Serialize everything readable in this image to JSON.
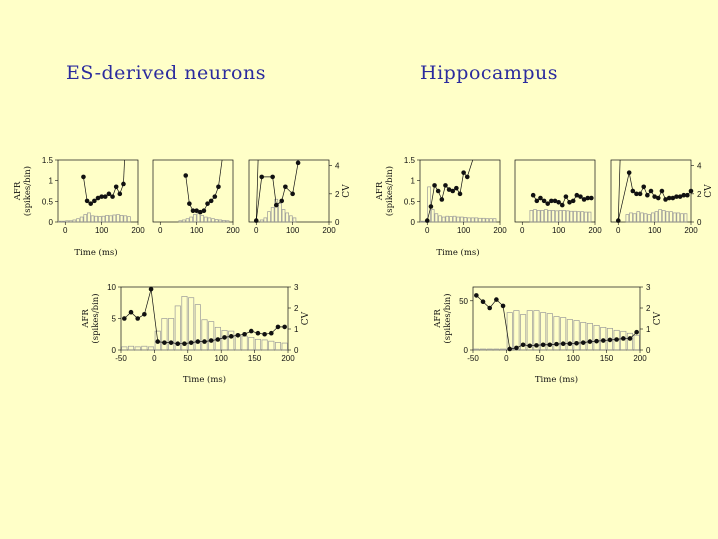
{
  "slide": {
    "left_title": "ES-derived neurons",
    "right_title": "Hippocampus"
  },
  "colors": {
    "background": "#ffffc8",
    "title": "#2b2b9e",
    "ink": "#111111",
    "bar_stroke": "#9a9a9a"
  },
  "chart_data": [
    {
      "id": "es-small-1",
      "type": "bar+line",
      "panel": "ES-derived neurons",
      "xlim": [
        -20,
        200
      ],
      "xticks": [
        0,
        100,
        200
      ],
      "ylim": [
        0,
        1.5
      ],
      "yticks": [
        0,
        0.5,
        1,
        1.5
      ],
      "ytick_labels": [
        "0",
        "0.5",
        "1",
        "1.5"
      ],
      "ylabel": "AFR\n(spikes/bin)",
      "xlabel": "Time (ms)",
      "bars": {
        "x": [
          -15,
          -5,
          5,
          15,
          25,
          35,
          45,
          55,
          65,
          75,
          85,
          95,
          105,
          115,
          125,
          135,
          145,
          155,
          165,
          175
        ],
        "values": [
          0.02,
          0.02,
          0.03,
          0.03,
          0.05,
          0.08,
          0.12,
          0.18,
          0.22,
          0.15,
          0.14,
          0.13,
          0.14,
          0.16,
          0.15,
          0.17,
          0.18,
          0.16,
          0.15,
          0.13
        ]
      },
      "cv": {
        "x": [
          50,
          60,
          70,
          80,
          90,
          100,
          110,
          120,
          130,
          140,
          150,
          160
        ],
        "values": [
          3.2,
          1.5,
          1.3,
          1.5,
          1.7,
          1.8,
          1.8,
          2.0,
          1.8,
          2.5,
          2.0,
          2.7
        ],
        "ylim": [
          0,
          4.4
        ],
        "overflow": [
          [
            160,
            2.7
          ],
          [
            163,
            5.0
          ]
        ]
      }
    },
    {
      "id": "es-small-2",
      "type": "bar+line",
      "panel": "ES-derived neurons",
      "xlim": [
        -20,
        200
      ],
      "xticks": [
        0,
        100,
        200
      ],
      "ylim": [
        0,
        1.5
      ],
      "bars": {
        "x": [
          55,
          65,
          75,
          85,
          95,
          105,
          115,
          125,
          135,
          145,
          155,
          165,
          175,
          185
        ],
        "values": [
          0.03,
          0.05,
          0.08,
          0.12,
          0.18,
          0.2,
          0.16,
          0.12,
          0.1,
          0.08,
          0.06,
          0.05,
          0.04,
          0.03
        ]
      },
      "cv": {
        "x": [
          70,
          80,
          90,
          100,
          110,
          120,
          130,
          140,
          150,
          160
        ],
        "values": [
          3.3,
          1.3,
          0.8,
          0.8,
          0.7,
          0.8,
          1.3,
          1.5,
          1.8,
          2.5
        ],
        "ylim": [
          0,
          4.4
        ],
        "overflow": [
          [
            160,
            2.5
          ],
          [
            170,
            5.0
          ]
        ]
      }
    },
    {
      "id": "es-small-3",
      "type": "bar+line",
      "panel": "ES-derived neurons",
      "xlim": [
        -20,
        200
      ],
      "xticks": [
        0,
        100,
        200
      ],
      "y2ticks": [
        0,
        2,
        4
      ],
      "y2label": "CV",
      "bars": {
        "x": [
          15,
          25,
          35,
          45,
          55,
          65,
          75,
          85,
          95,
          105
        ],
        "values": [
          0.05,
          0.1,
          0.25,
          0.35,
          0.55,
          0.45,
          0.3,
          0.22,
          0.15,
          0.1
        ]
      },
      "cv": {
        "x": [
          0,
          15,
          45,
          55,
          70,
          80,
          100,
          115
        ],
        "values": [
          0.1,
          3.2,
          3.2,
          1.2,
          1.5,
          2.5,
          2.0,
          4.2
        ],
        "ylim": [
          0,
          4.4
        ],
        "overflow": [
          [
            0,
            0.1
          ],
          [
            5,
            5.0
          ]
        ]
      }
    },
    {
      "id": "hc-small-1",
      "type": "bar+line",
      "panel": "Hippocampus",
      "xlim": [
        -20,
        200
      ],
      "xticks": [
        0,
        100,
        200
      ],
      "ylim": [
        0,
        1.5
      ],
      "yticks": [
        0,
        0.5,
        1,
        1.5
      ],
      "ytick_labels": [
        "0",
        "0.5",
        "1",
        "1.5"
      ],
      "ylabel": "AFR\n(spikes/bin)",
      "xlabel": "Time (ms)",
      "bars": {
        "x": [
          -15,
          -5,
          5,
          15,
          25,
          35,
          45,
          55,
          65,
          75,
          85,
          95,
          105,
          115,
          125,
          135,
          145,
          155,
          165,
          175,
          185
        ],
        "values": [
          0.02,
          0.02,
          0.85,
          0.3,
          0.2,
          0.15,
          0.12,
          0.14,
          0.13,
          0.14,
          0.12,
          0.12,
          0.11,
          0.1,
          0.1,
          0.1,
          0.09,
          0.09,
          0.08,
          0.08,
          0.08
        ]
      },
      "cv": {
        "x": [
          0,
          10,
          20,
          30,
          40,
          50,
          60,
          70,
          80,
          90,
          100,
          110
        ],
        "values": [
          0.1,
          1.1,
          2.6,
          2.2,
          1.6,
          2.6,
          2.3,
          2.2,
          2.4,
          2.0,
          3.5,
          3.2
        ],
        "ylim": [
          0,
          4.4
        ],
        "overflow": [
          [
            110,
            3.2
          ],
          [
            125,
            5.0
          ]
        ]
      }
    },
    {
      "id": "hc-small-2",
      "type": "bar+line",
      "panel": "Hippocampus",
      "xlim": [
        -20,
        200
      ],
      "xticks": [
        0,
        100,
        200
      ],
      "ylim": [
        0,
        1.5
      ],
      "bars": {
        "x": [
          25,
          35,
          45,
          55,
          65,
          75,
          85,
          95,
          105,
          115,
          125,
          135,
          145,
          155,
          165,
          175,
          185
        ],
        "values": [
          0.28,
          0.3,
          0.28,
          0.28,
          0.3,
          0.28,
          0.28,
          0.27,
          0.28,
          0.28,
          0.27,
          0.26,
          0.26,
          0.25,
          0.25,
          0.24,
          0.24
        ]
      },
      "cv": {
        "x": [
          30,
          40,
          50,
          60,
          70,
          80,
          90,
          100,
          110,
          120,
          130,
          140,
          150,
          160,
          170,
          180,
          190
        ],
        "values": [
          1.9,
          1.5,
          1.7,
          1.5,
          1.3,
          1.5,
          1.5,
          1.4,
          1.2,
          1.8,
          1.4,
          1.5,
          1.9,
          1.8,
          1.6,
          1.7,
          1.7
        ],
        "ylim": [
          0,
          4.4
        ]
      }
    },
    {
      "id": "hc-small-3",
      "type": "bar+line",
      "panel": "Hippocampus",
      "xlim": [
        -20,
        200
      ],
      "xticks": [
        0,
        100,
        200
      ],
      "y2ticks": [
        0,
        2,
        4
      ],
      "y2label": "CV",
      "bars": {
        "x": [
          25,
          35,
          45,
          55,
          65,
          75,
          85,
          95,
          105,
          115,
          125,
          135,
          145,
          155,
          165,
          175,
          185
        ],
        "values": [
          0.18,
          0.22,
          0.2,
          0.25,
          0.22,
          0.2,
          0.18,
          0.22,
          0.25,
          0.3,
          0.28,
          0.25,
          0.25,
          0.22,
          0.22,
          0.2,
          0.2
        ]
      },
      "cv": {
        "x": [
          0,
          30,
          40,
          50,
          60,
          70,
          80,
          90,
          100,
          110,
          120,
          130,
          140,
          150,
          160,
          170,
          180,
          190,
          200
        ],
        "values": [
          0.1,
          3.5,
          2.2,
          2.0,
          2.0,
          2.5,
          1.9,
          2.2,
          1.8,
          1.7,
          2.2,
          1.6,
          1.7,
          1.7,
          1.8,
          1.8,
          1.9,
          1.9,
          2.2
        ],
        "ylim": [
          0,
          4.4
        ],
        "overflow": [
          [
            0,
            0.1
          ],
          [
            5,
            5.0
          ]
        ]
      }
    },
    {
      "id": "es-large",
      "type": "bar+line",
      "panel": "ES-derived neurons",
      "xlim": [
        -50,
        200
      ],
      "xticks": [
        -50,
        0,
        50,
        100,
        150,
        200
      ],
      "xlabel": "Time (ms)",
      "ylim": [
        0,
        10
      ],
      "yticks": [
        0,
        5,
        10
      ],
      "ylabel": "AFR\n(spikes/bin)",
      "y2lim": [
        0,
        3
      ],
      "y2ticks": [
        0,
        1,
        2,
        3
      ],
      "y2label": "CV",
      "bars": {
        "x": [
          -45,
          -35,
          -25,
          -15,
          -5,
          5,
          15,
          25,
          35,
          45,
          55,
          65,
          75,
          85,
          95,
          105,
          115,
          125,
          135,
          145,
          155,
          165,
          175,
          185,
          195
        ],
        "values": [
          0.5,
          0.6,
          0.5,
          0.6,
          0.5,
          3.0,
          5.0,
          5.0,
          7.0,
          8.5,
          8.3,
          7.2,
          4.8,
          4.5,
          3.6,
          3.1,
          3.0,
          2.4,
          2.2,
          2.0,
          1.7,
          1.6,
          1.4,
          1.2,
          1.1
        ]
      },
      "cv": {
        "x": [
          -45,
          -35,
          -25,
          -15,
          -5,
          5,
          15,
          25,
          35,
          45,
          55,
          65,
          75,
          85,
          95,
          105,
          115,
          125,
          135,
          145,
          155,
          165,
          175,
          185,
          195
        ],
        "values": [
          1.5,
          1.8,
          1.5,
          1.7,
          2.9,
          0.4,
          0.35,
          0.35,
          0.3,
          0.3,
          0.35,
          0.4,
          0.4,
          0.45,
          0.5,
          0.6,
          0.65,
          0.7,
          0.75,
          0.9,
          0.8,
          0.75,
          0.8,
          1.1,
          1.1
        ]
      }
    },
    {
      "id": "hc-large",
      "type": "bar+line",
      "panel": "Hippocampus",
      "xlim": [
        -50,
        200
      ],
      "xticks": [
        -50,
        0,
        50,
        100,
        150,
        200
      ],
      "xlabel": "Time (ms)",
      "ylim": [
        0,
        64
      ],
      "yticks": [
        0,
        50
      ],
      "ylabel": "AFR\n(spikes/bin)",
      "y2lim": [
        0,
        3
      ],
      "y2ticks": [
        0,
        1,
        2,
        3
      ],
      "y2label": "CV",
      "bars": {
        "x": [
          -45,
          -35,
          -25,
          -15,
          -5,
          5,
          15,
          25,
          35,
          45,
          55,
          65,
          75,
          85,
          95,
          105,
          115,
          125,
          135,
          145,
          155,
          165,
          175,
          185,
          195
        ],
        "values": [
          1,
          1,
          1,
          1,
          1,
          38,
          40,
          36,
          40,
          40,
          38,
          37,
          34,
          33,
          31,
          30,
          28,
          27,
          25,
          23,
          22,
          20,
          19,
          17,
          15
        ]
      },
      "cv": {
        "x": [
          -45,
          -35,
          -25,
          -15,
          -5,
          5,
          15,
          25,
          35,
          45,
          55,
          65,
          75,
          85,
          95,
          105,
          115,
          125,
          135,
          145,
          155,
          165,
          175,
          185,
          195
        ],
        "values": [
          2.6,
          2.3,
          2.0,
          2.4,
          2.1,
          0.05,
          0.1,
          0.25,
          0.2,
          0.22,
          0.25,
          0.25,
          0.28,
          0.3,
          0.3,
          0.32,
          0.35,
          0.4,
          0.42,
          0.45,
          0.48,
          0.5,
          0.55,
          0.55,
          0.85
        ]
      }
    }
  ]
}
